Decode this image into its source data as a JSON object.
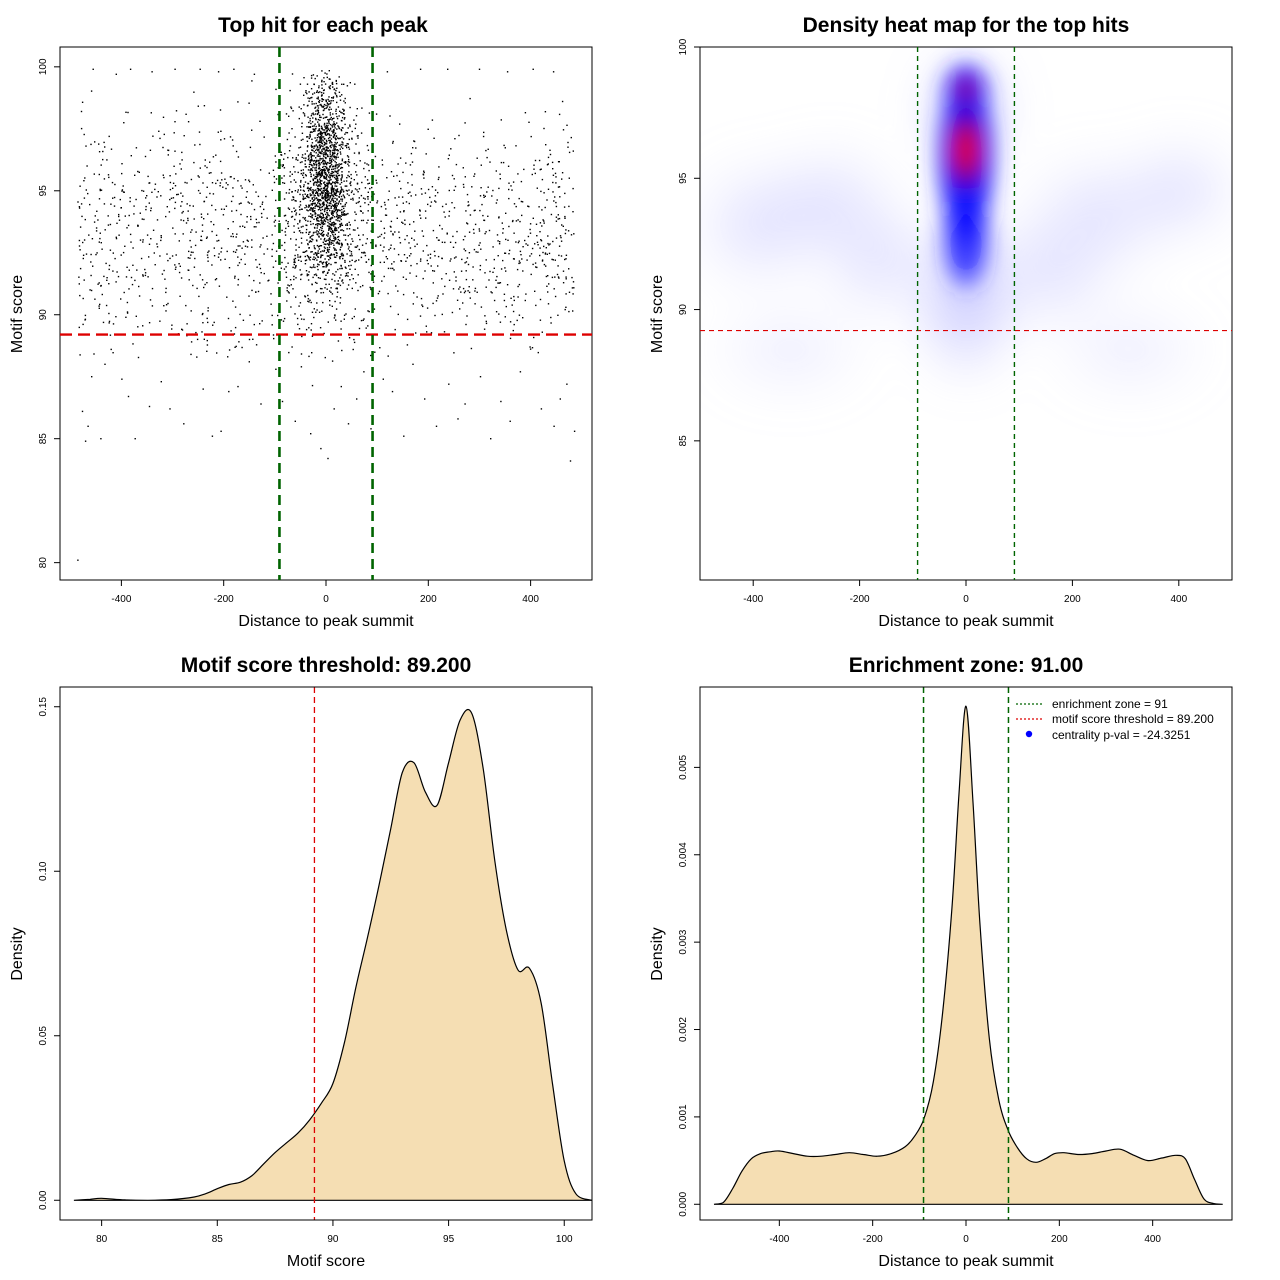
{
  "colors": {
    "threshold_line": "#dd0000",
    "zone_line": "#006400",
    "density_fill": "#f5deb3",
    "heat_low": "#ffffff",
    "heat_mid": "#0000ff",
    "heat_high": "#ff0000",
    "points": "#000000"
  },
  "chart_data": [
    {
      "type": "scatter",
      "title": "Top hit for each peak",
      "xlabel": "Distance to peak summit",
      "ylabel": "Motif score",
      "xlim": [
        -520,
        520
      ],
      "ylim": [
        79.3,
        100.8
      ],
      "xticks": [
        -400,
        -200,
        0,
        200,
        400
      ],
      "yticks": [
        80,
        85,
        90,
        95,
        100
      ],
      "xticks_labels": [
        "-400",
        "-200",
        "0",
        "200",
        "400"
      ],
      "yticks_labels": [
        "80",
        "85",
        "90",
        "95",
        "100"
      ],
      "threshold_y": 89.2,
      "zone_x": [
        -91,
        91
      ],
      "grid": false,
      "sampled_points": [
        [
          -485,
          80.1
        ],
        [
          -470,
          84.9
        ],
        [
          -465,
          85.5
        ],
        [
          -476,
          86.1
        ],
        [
          -458,
          87.5
        ],
        [
          -440,
          85.0
        ],
        [
          -432,
          88.0
        ],
        [
          -420,
          88.6
        ],
        [
          -399,
          87.4
        ],
        [
          -386,
          86.7
        ],
        [
          -373,
          85.0
        ],
        [
          -345,
          86.3
        ],
        [
          -322,
          87.3
        ],
        [
          -305,
          86.2
        ],
        [
          -278,
          85.6
        ],
        [
          -264,
          88.4
        ],
        [
          -240,
          87.0
        ],
        [
          -222,
          85.1
        ],
        [
          -205,
          85.3
        ],
        [
          -190,
          86.9
        ],
        [
          -172,
          87.1
        ],
        [
          -150,
          88.1
        ],
        [
          -127,
          86.4
        ],
        [
          -98,
          87.8
        ],
        [
          -85,
          86.5
        ],
        [
          -60,
          85.7
        ],
        [
          -48,
          87.9
        ],
        [
          -30,
          85.2
        ],
        [
          -10,
          84.6
        ],
        [
          4,
          84.2
        ],
        [
          16,
          86.2
        ],
        [
          30,
          87.1
        ],
        [
          44,
          85.6
        ],
        [
          60,
          86.6
        ],
        [
          74,
          87.7
        ],
        [
          88,
          85.4
        ],
        [
          112,
          87.4
        ],
        [
          130,
          86.9
        ],
        [
          152,
          85.1
        ],
        [
          170,
          88.0
        ],
        [
          193,
          86.6
        ],
        [
          216,
          85.5
        ],
        [
          240,
          87.2
        ],
        [
          258,
          85.8
        ],
        [
          272,
          86.4
        ],
        [
          302,
          87.5
        ],
        [
          322,
          85.0
        ],
        [
          342,
          86.5
        ],
        [
          360,
          85.7
        ],
        [
          380,
          87.7
        ],
        [
          399,
          88.7
        ],
        [
          421,
          86.2
        ],
        [
          446,
          85.5
        ],
        [
          458,
          86.6
        ],
        [
          471,
          87.2
        ],
        [
          478,
          84.1
        ],
        [
          486,
          85.3
        ],
        [
          -478,
          98.2
        ],
        [
          -455,
          99.9
        ],
        [
          -410,
          99.7
        ],
        [
          -382,
          99.9
        ],
        [
          -340,
          99.8
        ],
        [
          -295,
          99.9
        ],
        [
          -246,
          99.9
        ],
        [
          -210,
          99.8
        ],
        [
          -180,
          99.9
        ],
        [
          -140,
          99.7
        ],
        [
          120,
          99.8
        ],
        [
          185,
          99.9
        ],
        [
          238,
          99.9
        ],
        [
          300,
          99.9
        ],
        [
          355,
          99.8
        ],
        [
          405,
          99.9
        ],
        [
          445,
          99.8
        ]
      ]
    },
    {
      "type": "heatmap",
      "title": "Density heat map for the top hits",
      "xlabel": "Distance to peak summit",
      "ylabel": "Motif score",
      "xlim": [
        -500,
        500
      ],
      "ylim": [
        79.7,
        100.0
      ],
      "xticks": [
        -400,
        -200,
        0,
        200,
        400
      ],
      "yticks": [
        85,
        90,
        95,
        100
      ],
      "xticks_labels": [
        "-400",
        "-200",
        "0",
        "200",
        "400"
      ],
      "yticks_labels": [
        "85",
        "90",
        "95",
        "100"
      ],
      "threshold_y": 89.2,
      "zone_x": [
        -91,
        91
      ],
      "peak": {
        "x": 0,
        "y": 96.0
      }
    },
    {
      "type": "area",
      "title": "Motif score threshold: 89.200",
      "xlabel": "Motif score",
      "ylabel": "Density",
      "xlim": [
        78.2,
        101.2
      ],
      "ylim": [
        -0.006,
        0.156
      ],
      "xticks": [
        80,
        85,
        90,
        95,
        100
      ],
      "yticks": [
        0.0,
        0.05,
        0.1,
        0.15
      ],
      "xticks_labels": [
        "80",
        "85",
        "90",
        "95",
        "100"
      ],
      "yticks_labels": [
        "0.00",
        "0.05",
        "0.10",
        "0.15"
      ],
      "threshold_x": 89.2,
      "x": [
        78.8,
        79.5,
        80.0,
        81.0,
        82.0,
        83.0,
        84.0,
        84.5,
        85.0,
        85.5,
        86.0,
        86.5,
        87.0,
        87.5,
        88.0,
        88.5,
        89.0,
        89.5,
        90.0,
        90.5,
        91.0,
        91.5,
        92.0,
        92.5,
        93.0,
        93.5,
        94.0,
        94.5,
        95.0,
        95.5,
        96.0,
        96.5,
        97.0,
        97.5,
        98.0,
        98.5,
        99.0,
        99.5,
        100.0,
        100.5,
        101.2
      ],
      "y": [
        0.0,
        0.0003,
        0.0006,
        0.0001,
        0.0,
        0.0002,
        0.001,
        0.002,
        0.0035,
        0.0048,
        0.0055,
        0.0075,
        0.011,
        0.0145,
        0.0175,
        0.0205,
        0.0245,
        0.0295,
        0.0355,
        0.048,
        0.065,
        0.08,
        0.096,
        0.113,
        0.13,
        0.133,
        0.124,
        0.12,
        0.133,
        0.146,
        0.148,
        0.131,
        0.103,
        0.082,
        0.07,
        0.0705,
        0.06,
        0.035,
        0.012,
        0.002,
        0.0
      ]
    },
    {
      "type": "area",
      "title": "Enrichment zone: 91.00",
      "xlabel": "Distance to peak summit",
      "ylabel": "Density",
      "xlim": [
        -570,
        570
      ],
      "ylim": [
        -0.00018,
        0.00592
      ],
      "xticks": [
        -400,
        -200,
        0,
        200,
        400
      ],
      "yticks": [
        0.0,
        0.001,
        0.002,
        0.003,
        0.004,
        0.005
      ],
      "xticks_labels": [
        "-400",
        "-200",
        "0",
        "200",
        "400"
      ],
      "yticks_labels": [
        "0.000",
        "0.001",
        "0.002",
        "0.003",
        "0.004",
        "0.005"
      ],
      "zone_x": [
        -91,
        91
      ],
      "x": [
        -540,
        -520,
        -500,
        -480,
        -460,
        -440,
        -420,
        -400,
        -370,
        -340,
        -310,
        -280,
        -250,
        -220,
        -190,
        -160,
        -130,
        -110,
        -90,
        -70,
        -50,
        -30,
        -15,
        0,
        15,
        30,
        50,
        70,
        90,
        110,
        130,
        150,
        170,
        190,
        210,
        240,
        270,
        300,
        330,
        360,
        390,
        420,
        450,
        470,
        490,
        510,
        530,
        550
      ],
      "y": [
        0.0,
        2e-05,
        0.00018,
        0.00038,
        0.00052,
        0.00058,
        0.0006,
        0.00061,
        0.00058,
        0.00055,
        0.00055,
        0.00057,
        0.00059,
        0.00057,
        0.00055,
        0.00058,
        0.00066,
        0.00078,
        0.00098,
        0.0014,
        0.0022,
        0.0034,
        0.0047,
        0.0057,
        0.0046,
        0.0032,
        0.0019,
        0.0012,
        0.00085,
        0.00065,
        0.00052,
        0.00048,
        0.00052,
        0.00058,
        0.00059,
        0.00057,
        0.00058,
        0.00061,
        0.00063,
        0.00056,
        0.0005,
        0.00053,
        0.00056,
        0.00052,
        0.00028,
        6e-05,
        1e-05,
        0.0
      ],
      "legend": {
        "position": "top-right",
        "entries": [
          {
            "label": "enrichment zone = 91",
            "style": "dotted",
            "color": "#006400"
          },
          {
            "label": "motif score threshold = 89.200",
            "style": "dotted",
            "color": "#dd0000"
          },
          {
            "label": "centrality p-val = -24.3251",
            "style": "point",
            "color": "#0000ff"
          }
        ]
      }
    }
  ]
}
